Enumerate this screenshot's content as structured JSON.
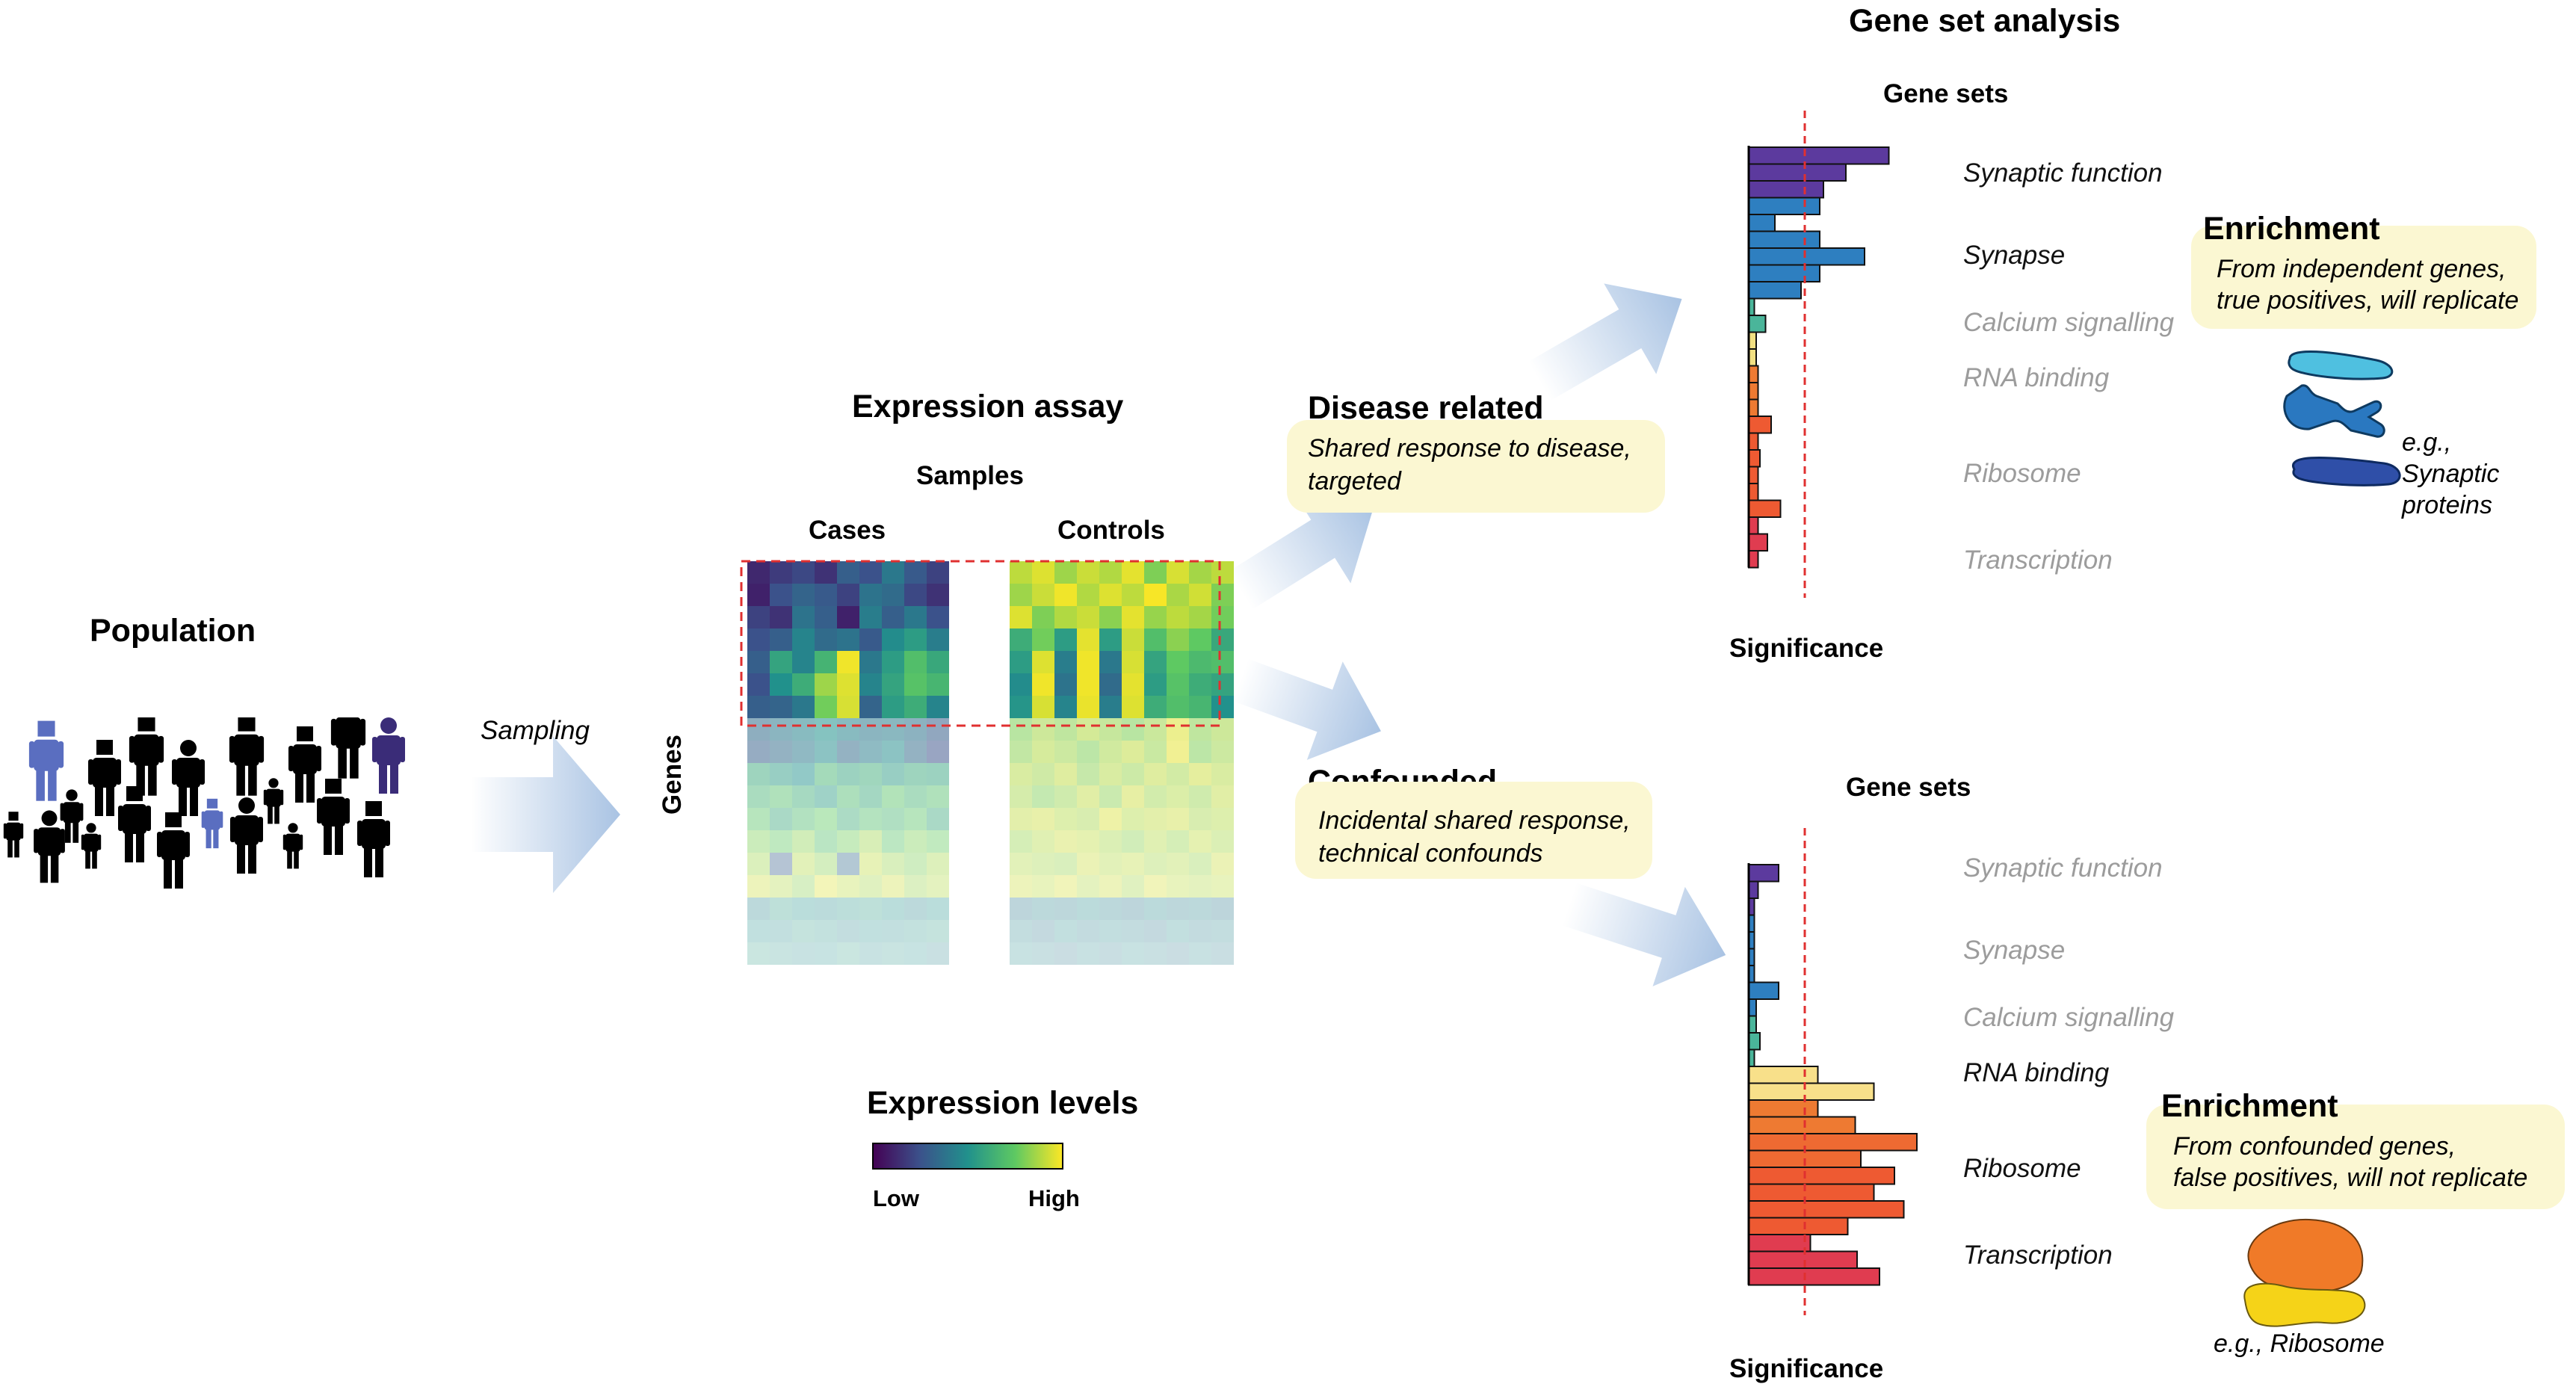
{
  "population": {
    "title": "Population",
    "person_color": "#000000",
    "highlight_colors": [
      "#5a6ec0",
      "#3a2c78"
    ]
  },
  "sampling": {
    "label": "Sampling"
  },
  "expression_assay": {
    "title": "Expression assay",
    "samples_label": "Samples",
    "cases_label": "Cases",
    "controls_label": "Controls",
    "genes_label": "Genes"
  },
  "heatmap": {
    "colormap": [
      "#440154",
      "#3b528b",
      "#21918c",
      "#5ec962",
      "#fde725"
    ],
    "highlight_box_color": "#e03030",
    "cases": [
      [
        0.12,
        0.18,
        0.22,
        0.15,
        0.3,
        0.25,
        0.4,
        0.28,
        0.2
      ],
      [
        0.1,
        0.25,
        0.32,
        0.28,
        0.2,
        0.38,
        0.35,
        0.22,
        0.15
      ],
      [
        0.2,
        0.15,
        0.38,
        0.3,
        0.1,
        0.42,
        0.3,
        0.4,
        0.25
      ],
      [
        0.25,
        0.3,
        0.45,
        0.35,
        0.38,
        0.28,
        0.48,
        0.55,
        0.42
      ],
      [
        0.3,
        0.58,
        0.45,
        0.65,
        0.98,
        0.4,
        0.55,
        0.7,
        0.6
      ],
      [
        0.25,
        0.5,
        0.62,
        0.85,
        0.95,
        0.45,
        0.58,
        0.72,
        0.66
      ],
      [
        0.3,
        0.32,
        0.4,
        0.78,
        0.94,
        0.32,
        0.55,
        0.62,
        0.45
      ],
      [
        0.35,
        0.4,
        0.45,
        0.5,
        0.45,
        0.4,
        0.42,
        0.38,
        0.3
      ],
      [
        0.3,
        0.35,
        0.4,
        0.48,
        0.35,
        0.42,
        0.48,
        0.35,
        0.25
      ],
      [
        0.6,
        0.55,
        0.5,
        0.65,
        0.58,
        0.62,
        0.55,
        0.6,
        0.58
      ],
      [
        0.65,
        0.7,
        0.62,
        0.55,
        0.68,
        0.6,
        0.72,
        0.65,
        0.7
      ],
      [
        0.72,
        0.6,
        0.68,
        0.75,
        0.62,
        0.7,
        0.66,
        0.72,
        0.6
      ],
      [
        0.8,
        0.75,
        0.82,
        0.7,
        0.78,
        0.85,
        0.72,
        0.8,
        0.76
      ],
      [
        0.85,
        0.3,
        0.88,
        0.82,
        0.35,
        0.9,
        0.84,
        0.8,
        0.86
      ],
      [
        0.92,
        0.88,
        0.82,
        0.95,
        0.9,
        0.86,
        0.92,
        0.84,
        0.88
      ],
      [
        0.45,
        0.55,
        0.5,
        0.48,
        0.52,
        0.55,
        0.5,
        0.45,
        0.5
      ],
      [
        0.5,
        0.48,
        0.55,
        0.52,
        0.45,
        0.5,
        0.48,
        0.52,
        0.55
      ],
      [
        0.55,
        0.52,
        0.48,
        0.5,
        0.55,
        0.48,
        0.52,
        0.5,
        0.45
      ]
    ],
    "controls": [
      [
        0.9,
        0.95,
        0.85,
        0.92,
        0.88,
        0.96,
        0.8,
        0.94,
        0.86,
        0.9
      ],
      [
        0.85,
        0.92,
        0.98,
        0.88,
        0.95,
        0.9,
        0.99,
        0.87,
        0.93,
        0.8
      ],
      [
        0.95,
        0.8,
        0.88,
        0.92,
        0.82,
        0.96,
        0.84,
        0.9,
        0.86,
        0.78
      ],
      [
        0.62,
        0.78,
        0.55,
        0.96,
        0.55,
        0.92,
        0.7,
        0.82,
        0.75,
        0.6
      ],
      [
        0.55,
        0.95,
        0.42,
        0.98,
        0.4,
        0.94,
        0.58,
        0.75,
        0.68,
        0.7
      ],
      [
        0.48,
        0.98,
        0.38,
        0.98,
        0.35,
        0.96,
        0.55,
        0.72,
        0.62,
        0.58
      ],
      [
        0.52,
        0.94,
        0.45,
        0.97,
        0.42,
        0.95,
        0.62,
        0.7,
        0.66,
        0.5
      ],
      [
        0.8,
        0.86,
        0.82,
        0.88,
        0.84,
        0.8,
        0.85,
        0.95,
        0.82,
        0.86
      ],
      [
        0.82,
        0.88,
        0.85,
        0.8,
        0.86,
        0.9,
        0.84,
        0.96,
        0.8,
        0.85
      ],
      [
        0.88,
        0.85,
        0.9,
        0.82,
        0.88,
        0.84,
        0.9,
        0.86,
        0.92,
        0.88
      ],
      [
        0.86,
        0.8,
        0.84,
        0.9,
        0.82,
        0.92,
        0.85,
        0.88,
        0.84,
        0.9
      ],
      [
        0.9,
        0.92,
        0.88,
        0.86,
        0.94,
        0.88,
        0.9,
        0.92,
        0.86,
        0.88
      ],
      [
        0.84,
        0.88,
        0.92,
        0.9,
        0.86,
        0.82,
        0.88,
        0.84,
        0.9,
        0.86
      ],
      [
        0.88,
        0.86,
        0.84,
        0.92,
        0.88,
        0.9,
        0.86,
        0.88,
        0.84,
        0.92
      ],
      [
        0.92,
        0.9,
        0.94,
        0.88,
        0.92,
        0.86,
        0.94,
        0.9,
        0.88,
        0.9
      ],
      [
        0.4,
        0.45,
        0.42,
        0.48,
        0.44,
        0.4,
        0.46,
        0.42,
        0.45,
        0.4
      ],
      [
        0.45,
        0.4,
        0.48,
        0.42,
        0.46,
        0.44,
        0.4,
        0.48,
        0.42,
        0.45
      ],
      [
        0.48,
        0.44,
        0.4,
        0.46,
        0.42,
        0.48,
        0.44,
        0.4,
        0.46,
        0.42
      ]
    ]
  },
  "legend": {
    "title": "Expression levels",
    "low_label": "Low",
    "high_label": "High"
  },
  "disease": {
    "title": "Disease related",
    "note_line1": "Shared response to disease,",
    "note_line2": "targeted"
  },
  "confounded": {
    "title": "Confounded",
    "note_line1": "Incidental shared response,",
    "note_line2": "technical confounds"
  },
  "gene_set_analysis": {
    "title": "Gene set analysis"
  },
  "top_chart": {
    "gene_sets_label": "Gene sets",
    "significance_label": "Significance",
    "threshold": 3.0,
    "bars": [
      {
        "value": 7.5,
        "color": "#5c3a9e"
      },
      {
        "value": 5.2,
        "color": "#5c3a9e"
      },
      {
        "value": 4.0,
        "color": "#5c3a9e"
      },
      {
        "value": 3.8,
        "color": "#2e7fc0"
      },
      {
        "value": 1.4,
        "color": "#2e7fc0"
      },
      {
        "value": 3.8,
        "color": "#2e7fc0"
      },
      {
        "value": 6.2,
        "color": "#2e7fc0"
      },
      {
        "value": 3.8,
        "color": "#2e7fc0"
      },
      {
        "value": 2.8,
        "color": "#2e7fc0"
      },
      {
        "value": 0.3,
        "color": "#4ab59a"
      },
      {
        "value": 0.9,
        "color": "#4ab59a"
      },
      {
        "value": 0.4,
        "color": "#f2e082"
      },
      {
        "value": 0.4,
        "color": "#f2e082"
      },
      {
        "value": 0.5,
        "color": "#ee7a32"
      },
      {
        "value": 0.5,
        "color": "#ee7a32"
      },
      {
        "value": 0.5,
        "color": "#ee7a32"
      },
      {
        "value": 1.2,
        "color": "#ee5a32"
      },
      {
        "value": 0.5,
        "color": "#ee5a32"
      },
      {
        "value": 0.6,
        "color": "#ee5a32"
      },
      {
        "value": 0.5,
        "color": "#ee5a32"
      },
      {
        "value": 0.5,
        "color": "#ee5a32"
      },
      {
        "value": 1.7,
        "color": "#ee5a32"
      },
      {
        "value": 0.5,
        "color": "#e03c50"
      },
      {
        "value": 1.0,
        "color": "#e03c50"
      },
      {
        "value": 0.5,
        "color": "#e03c50"
      }
    ],
    "labels": [
      "Synaptic function",
      "Synapse",
      "Calcium signalling",
      "RNA binding",
      "Ribosome",
      "Transcription"
    ]
  },
  "bottom_chart": {
    "gene_sets_label": "Gene sets",
    "significance_label": "Significance",
    "threshold": 3.0,
    "bars": [
      {
        "value": 1.6,
        "color": "#5c3a9e"
      },
      {
        "value": 0.5,
        "color": "#5c3a9e"
      },
      {
        "value": 0.3,
        "color": "#5c3a9e"
      },
      {
        "value": 0.3,
        "color": "#2e7fc0"
      },
      {
        "value": 0.3,
        "color": "#2e7fc0"
      },
      {
        "value": 0.3,
        "color": "#2e7fc0"
      },
      {
        "value": 0.3,
        "color": "#2e7fc0"
      },
      {
        "value": 1.6,
        "color": "#2e7fc0"
      },
      {
        "value": 0.4,
        "color": "#2e7fc0"
      },
      {
        "value": 0.4,
        "color": "#4ab59a"
      },
      {
        "value": 0.6,
        "color": "#4ab59a"
      },
      {
        "value": 0.3,
        "color": "#4ab59a"
      },
      {
        "value": 3.7,
        "color": "#f8e08a"
      },
      {
        "value": 6.7,
        "color": "#f8e08a"
      },
      {
        "value": 3.7,
        "color": "#ee7a32"
      },
      {
        "value": 5.7,
        "color": "#ee7a32"
      },
      {
        "value": 9.0,
        "color": "#ee6a32"
      },
      {
        "value": 6.0,
        "color": "#ee6a32"
      },
      {
        "value": 7.8,
        "color": "#ee5a32"
      },
      {
        "value": 6.7,
        "color": "#ee5a32"
      },
      {
        "value": 8.3,
        "color": "#ee5a32"
      },
      {
        "value": 5.3,
        "color": "#ee5a32"
      },
      {
        "value": 3.3,
        "color": "#e03c50"
      },
      {
        "value": 5.8,
        "color": "#e03c50"
      },
      {
        "value": 7.0,
        "color": "#e03c50"
      }
    ],
    "labels": [
      "Synaptic function",
      "Synapse",
      "Calcium signalling",
      "RNA binding",
      "Ribosome",
      "Transcription"
    ]
  },
  "top_enrichment": {
    "title": "Enrichment",
    "note_line1": "From independent genes,",
    "note_line2": "true positives, will replicate",
    "example_line1": "e.g.,",
    "example_line2": "Synaptic",
    "example_line3": "proteins",
    "icon_colors": [
      "#4fc0e0",
      "#2a78c0",
      "#2f4fa8"
    ]
  },
  "bottom_enrichment": {
    "title": "Enrichment",
    "note_line1": "From confounded genes,",
    "note_line2": "false positives, will not replicate",
    "example_label": "e.g., Ribosome",
    "icon_colors": [
      "#f07a28",
      "#f5d318"
    ]
  },
  "arrow_color": "#a9c3e3",
  "threshold_color": "#e03030"
}
